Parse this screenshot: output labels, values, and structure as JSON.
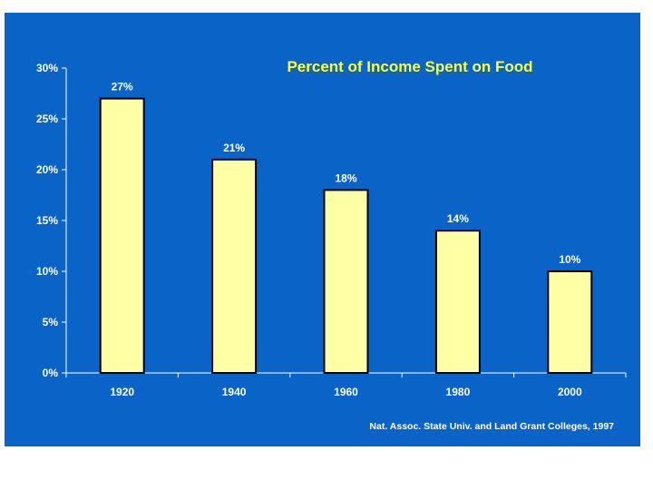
{
  "chart_data": {
    "type": "bar",
    "title": "Percent of Income Spent on Food",
    "categories": [
      "1920",
      "1940",
      "1960",
      "1980",
      "2000"
    ],
    "values": [
      27,
      21,
      18,
      14,
      10
    ],
    "data_labels": [
      "27%",
      "21%",
      "18%",
      "14%",
      "10%"
    ],
    "xlabel": "",
    "ylabel": "",
    "ylim": [
      0,
      30
    ],
    "y_ticks": [
      {
        "value": 0,
        "label": "0%"
      },
      {
        "value": 5,
        "label": "5%"
      },
      {
        "value": 10,
        "label": "10%"
      },
      {
        "value": 15,
        "label": "15%"
      },
      {
        "value": 20,
        "label": "20%"
      },
      {
        "value": 25,
        "label": "25%"
      },
      {
        "value": 30,
        "label": "30%"
      }
    ],
    "grid": false,
    "legend": "none",
    "source": "Nat. Assoc. State Univ. and Land Grant Colleges, 1997"
  },
  "colors": {
    "background": "#0a64c8",
    "bar_fill": "#ffffa6",
    "bar_stroke": "#000000",
    "title": "#ffff33",
    "text": "#ffffff",
    "axis": "#ffffff"
  }
}
